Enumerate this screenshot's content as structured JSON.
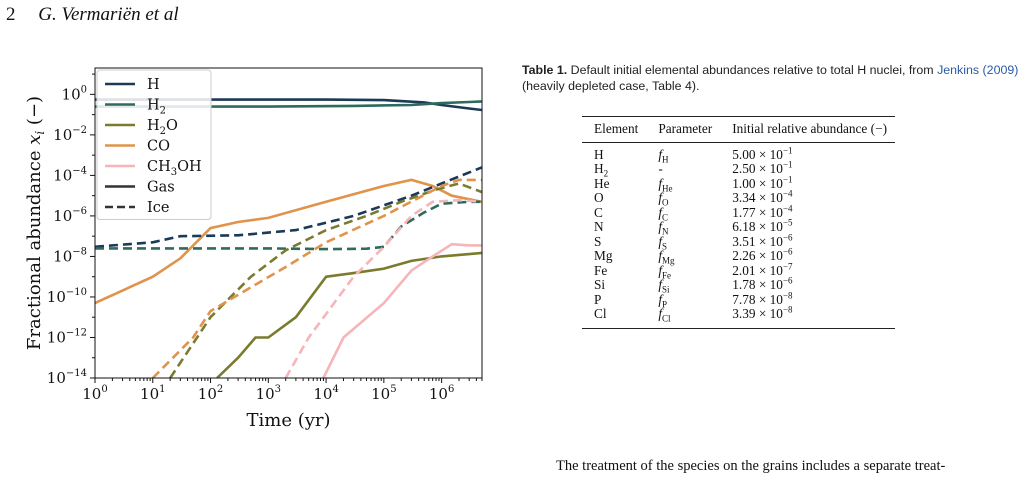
{
  "header": {
    "page_number": "2",
    "authors": "G. Vermariën et al"
  },
  "chart_data": {
    "type": "line",
    "xlabel": "Time (yr)",
    "ylabel": "Fractional abundance x_i (−)",
    "xscale": "log",
    "yscale": "log",
    "xlim": [
      1,
      5000000
    ],
    "ylim": [
      1e-14,
      20
    ],
    "x_ticks": [
      "10^0",
      "10^1",
      "10^2",
      "10^3",
      "10^4",
      "10^5",
      "10^6"
    ],
    "y_ticks": [
      "10^-14",
      "10^-12",
      "10^-10",
      "10^-8",
      "10^-6",
      "10^-4",
      "10^-2",
      "10^0"
    ],
    "legend_position": "top-left",
    "legend": [
      {
        "label": "H",
        "color": "#1b3a57",
        "style": "solid"
      },
      {
        "label": "H2",
        "color": "#2e6b5e",
        "style": "solid"
      },
      {
        "label": "H2O",
        "color": "#7a7b2e",
        "style": "solid"
      },
      {
        "label": "CO",
        "color": "#e0934a",
        "style": "solid"
      },
      {
        "label": "CH3OH",
        "color": "#f6b5b9",
        "style": "solid"
      },
      {
        "label": "Gas",
        "color": "#333333",
        "style": "solid"
      },
      {
        "label": "Ice",
        "color": "#333333",
        "style": "dashed"
      }
    ],
    "series": [
      {
        "name": "H",
        "phase": "Gas",
        "color": "#1b3a57",
        "points": [
          [
            1,
            0.55
          ],
          [
            100,
            0.55
          ],
          [
            10000,
            0.55
          ],
          [
            100000,
            0.52
          ],
          [
            500000,
            0.4
          ],
          [
            1000000,
            0.3
          ],
          [
            3000000,
            0.2
          ],
          [
            5000000,
            0.17
          ]
        ]
      },
      {
        "name": "H2",
        "phase": "Gas",
        "color": "#2e6b5e",
        "points": [
          [
            1,
            0.25
          ],
          [
            1000,
            0.25
          ],
          [
            30000,
            0.27
          ],
          [
            300000,
            0.3
          ],
          [
            1000000,
            0.37
          ],
          [
            3000000,
            0.42
          ],
          [
            5000000,
            0.45
          ]
        ]
      },
      {
        "name": "H2O",
        "phase": "Gas",
        "color": "#7a7b2e",
        "points": [
          [
            130,
            1e-14
          ],
          [
            300,
            1e-13
          ],
          [
            600,
            1e-12
          ],
          [
            1000,
            1e-12
          ],
          [
            3000,
            1e-11
          ],
          [
            10000,
            1e-09
          ],
          [
            30000,
            1.5e-09
          ],
          [
            100000,
            2.5e-09
          ],
          [
            300000,
            6e-09
          ],
          [
            1000000,
            1e-08
          ],
          [
            3000000,
            1.3e-08
          ],
          [
            5000000,
            1.5e-08
          ]
        ]
      },
      {
        "name": "CO",
        "phase": "Gas",
        "color": "#e0934a",
        "points": [
          [
            1,
            5e-11
          ],
          [
            10,
            1e-09
          ],
          [
            30,
            8e-09
          ],
          [
            100,
            2.5e-07
          ],
          [
            300,
            5e-07
          ],
          [
            1000,
            8e-07
          ],
          [
            10000,
            5e-06
          ],
          [
            100000,
            3e-05
          ],
          [
            300000,
            6e-05
          ],
          [
            700000,
            3e-05
          ],
          [
            1500000,
            1e-05
          ],
          [
            5000000,
            5e-06
          ]
        ]
      },
      {
        "name": "CH3OH",
        "phase": "Gas",
        "color": "#f6b5b9",
        "points": [
          [
            9000,
            1e-14
          ],
          [
            20000,
            1e-12
          ],
          [
            100000,
            5e-11
          ],
          [
            300000,
            2e-09
          ],
          [
            700000,
            1e-08
          ],
          [
            1500000,
            4e-08
          ],
          [
            3000000,
            3.5e-08
          ],
          [
            5000000,
            3.5e-08
          ]
        ]
      },
      {
        "name": "H",
        "phase": "Ice",
        "color": "#1b3a57",
        "points": [
          [
            1,
            3e-08
          ],
          [
            10,
            5e-08
          ],
          [
            30,
            1e-07
          ],
          [
            300,
            1.1e-07
          ],
          [
            3000,
            2e-07
          ],
          [
            30000,
            1e-06
          ],
          [
            300000,
            1e-05
          ],
          [
            1000000,
            4e-05
          ],
          [
            5000000,
            0.00025
          ]
        ]
      },
      {
        "name": "H2",
        "phase": "Ice",
        "color": "#2e6b5e",
        "points": [
          [
            1,
            2.5e-08
          ],
          [
            1000,
            2.5e-08
          ],
          [
            10000,
            2.3e-08
          ],
          [
            50000,
            2.4e-08
          ],
          [
            100000,
            3e-08
          ],
          [
            200000,
            3e-07
          ],
          [
            500000,
            1.5e-06
          ],
          [
            1000000,
            4e-06
          ],
          [
            3000000,
            5e-06
          ],
          [
            5000000,
            5e-06
          ]
        ]
      },
      {
        "name": "H2O",
        "phase": "Ice",
        "color": "#7a7b2e",
        "points": [
          [
            20,
            1e-14
          ],
          [
            100,
            1e-11
          ],
          [
            500,
            1e-09
          ],
          [
            2000,
            2e-08
          ],
          [
            10000,
            2e-07
          ],
          [
            50000,
            1e-06
          ],
          [
            200000,
            5e-06
          ],
          [
            800000,
            2e-05
          ],
          [
            2000000,
            4e-05
          ],
          [
            5000000,
            1.5e-05
          ]
        ]
      },
      {
        "name": "CO",
        "phase": "Ice",
        "color": "#e0934a",
        "points": [
          [
            10,
            1e-14
          ],
          [
            50,
            1e-12
          ],
          [
            100,
            2e-11
          ],
          [
            500,
            3e-10
          ],
          [
            2000,
            3e-09
          ],
          [
            10000,
            5e-08
          ],
          [
            100000,
            1e-06
          ],
          [
            1000000,
            3e-05
          ],
          [
            2000000,
            6e-05
          ],
          [
            5000000,
            6e-05
          ]
        ]
      },
      {
        "name": "CH3OH",
        "phase": "Ice",
        "color": "#f6b5b9",
        "points": [
          [
            2000,
            1e-14
          ],
          [
            5000,
            1e-12
          ],
          [
            30000,
            1e-09
          ],
          [
            100000,
            3e-08
          ],
          [
            300000,
            1e-06
          ],
          [
            700000,
            5e-06
          ],
          [
            2000000,
            6e-06
          ],
          [
            5000000,
            5e-06
          ]
        ]
      }
    ]
  },
  "table": {
    "caption_label": "Table 1.",
    "caption_text": " Default initial elemental abundances relative to total H nuclei, from ",
    "caption_ref_author": "Jenkins",
    "caption_ref_year": "2009",
    "caption_tail": " (heavily depleted case, Table 4).",
    "headers": [
      "Element",
      "Parameter",
      "Initial relative abundance (−)"
    ],
    "rows": [
      {
        "el": "H",
        "el_sub": "",
        "par": "f",
        "par_sub": "H",
        "mant": "5.00",
        "exp": "−1"
      },
      {
        "el": "H",
        "el_sub": "2",
        "par": "-",
        "par_sub": "",
        "mant": "2.50",
        "exp": "−1"
      },
      {
        "el": "He",
        "el_sub": "",
        "par": "f",
        "par_sub": "He",
        "mant": "1.00",
        "exp": "−1"
      },
      {
        "el": "O",
        "el_sub": "",
        "par": "f",
        "par_sub": "O",
        "mant": "3.34",
        "exp": "−4"
      },
      {
        "el": "C",
        "el_sub": "",
        "par": "f",
        "par_sub": "C",
        "mant": "1.77",
        "exp": "−4"
      },
      {
        "el": "N",
        "el_sub": "",
        "par": "f",
        "par_sub": "N",
        "mant": "6.18",
        "exp": "−5"
      },
      {
        "el": "S",
        "el_sub": "",
        "par": "f",
        "par_sub": "S",
        "mant": "3.51",
        "exp": "−6"
      },
      {
        "el": "Mg",
        "el_sub": "",
        "par": "f",
        "par_sub": "Mg",
        "mant": "2.26",
        "exp": "−6"
      },
      {
        "el": "Fe",
        "el_sub": "",
        "par": "f",
        "par_sub": "Fe",
        "mant": "2.01",
        "exp": "−7"
      },
      {
        "el": "Si",
        "el_sub": "",
        "par": "f",
        "par_sub": "Si",
        "mant": "1.78",
        "exp": "−6"
      },
      {
        "el": "P",
        "el_sub": "",
        "par": "f",
        "par_sub": "P",
        "mant": "7.78",
        "exp": "−8"
      },
      {
        "el": "Cl",
        "el_sub": "",
        "par": "f",
        "par_sub": "Cl",
        "mant": "3.39",
        "exp": "−8"
      }
    ]
  },
  "body_text": "The treatment of the species on the grains includes a separate treat-"
}
